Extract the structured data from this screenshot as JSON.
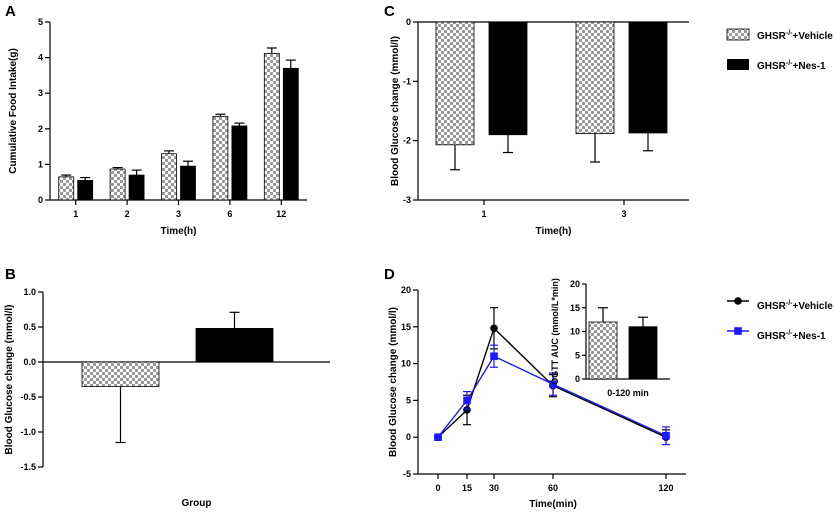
{
  "colors": {
    "solid": "#000000",
    "checker_a": "#ffffff",
    "checker_b": "#9a9a9a",
    "blue": "#1a1aff"
  },
  "chart_data": [
    {
      "panel": "A",
      "type": "bar",
      "title": "",
      "xlabel": "Time(h)",
      "ylabel": "Cumulative Food Intake(g)",
      "ylim": [
        0,
        5
      ],
      "yticks": [
        "0",
        "1",
        "2",
        "3",
        "4",
        "5"
      ],
      "categories": [
        "1",
        "2",
        "3",
        "6",
        "12"
      ],
      "series": [
        {
          "name": "GHSR-/-+Vehicle",
          "pattern": "checker",
          "values": [
            0.65,
            0.87,
            1.3,
            2.35,
            4.12
          ],
          "errors": [
            0.05,
            0.04,
            0.08,
            0.06,
            0.15
          ]
        },
        {
          "name": "GHSR-/-+Nes-1",
          "pattern": "solid",
          "values": [
            0.55,
            0.7,
            0.95,
            2.08,
            3.7
          ],
          "errors": [
            0.08,
            0.14,
            0.14,
            0.08,
            0.23
          ]
        }
      ]
    },
    {
      "panel": "B",
      "type": "bar",
      "title": "",
      "xlabel": "Group",
      "ylabel": "Blood Glucose change (mmol/l)",
      "ylim": [
        -1.5,
        1.0
      ],
      "yticks": [
        "-1.5",
        "-1.0",
        "-0.5",
        "0.0",
        "0.5",
        "1.0"
      ],
      "series": [
        {
          "name": "GHSR-/-+Vehicle",
          "pattern": "checker",
          "value": -0.35,
          "error": 0.8
        },
        {
          "name": "GHSR-/-+Nes-1",
          "pattern": "solid",
          "value": 0.48,
          "error": 0.23
        }
      ]
    },
    {
      "panel": "C",
      "type": "bar",
      "title": "",
      "xlabel": "Time(h)",
      "ylabel": "Blood Glucose change (mmol/l)",
      "ylim": [
        -3,
        0
      ],
      "yticks": [
        "-3",
        "-2",
        "-1",
        "0"
      ],
      "categories": [
        "1",
        "3"
      ],
      "series": [
        {
          "name": "GHSR-/-+Vehicle",
          "pattern": "checker",
          "values": [
            -2.07,
            -1.88
          ],
          "errors": [
            0.42,
            0.48
          ]
        },
        {
          "name": "GHSR-/-+Nes-1",
          "pattern": "solid",
          "values": [
            -1.9,
            -1.87
          ],
          "errors": [
            0.3,
            0.3
          ]
        }
      ],
      "legend": [
        {
          "base": "GHSR",
          "sup": "-/-",
          "rest": "+Vehicle"
        },
        {
          "base": "GHSR",
          "sup": "-/-",
          "rest": "+Nes-1"
        }
      ]
    },
    {
      "panel": "D",
      "type": "line",
      "title": "",
      "xlabel": "Time(min)",
      "ylabel": "Blood Glucose change (mmol/l)",
      "ylim": [
        -5,
        20
      ],
      "yticks": [
        "-5",
        "0",
        "5",
        "10",
        "15",
        "20"
      ],
      "x": [
        0,
        15,
        30,
        60,
        120
      ],
      "xticks": [
        "0",
        "15",
        "30",
        "60",
        "120"
      ],
      "series": [
        {
          "name": "GHSR-/-+Vehicle",
          "color": "#000000",
          "marker": "circle",
          "y": [
            0,
            3.7,
            14.8,
            7.0,
            0
          ],
          "errors": [
            0.1,
            2.0,
            2.8,
            1.5,
            1.0
          ]
        },
        {
          "name": "GHSR-/-+Nes-1",
          "color": "#1a1aff",
          "marker": "square",
          "y": [
            0,
            5.0,
            11.0,
            7.2,
            0.2
          ],
          "errors": [
            0.1,
            1.2,
            1.5,
            1.5,
            1.2
          ]
        }
      ],
      "legend": [
        {
          "base": "GHSR",
          "sup": "-/-",
          "rest": "+Vehicle"
        },
        {
          "base": "GHSR",
          "sup": "-/-",
          "rest": "+Nes-1"
        }
      ],
      "inset": {
        "type": "bar",
        "ylabel": "OGTT AUC (mmol/L*min)",
        "xlabel": "0-120 min",
        "ylim": [
          0,
          20
        ],
        "yticks": [
          "0",
          "5",
          "10",
          "15",
          "20"
        ],
        "series": [
          {
            "name": "GHSR-/-+Vehicle",
            "pattern": "checker",
            "value": 12.0,
            "error": 3.0
          },
          {
            "name": "GHSR-/-+Nes-1",
            "pattern": "solid",
            "value": 11.0,
            "error": 2.0
          }
        ]
      }
    }
  ]
}
